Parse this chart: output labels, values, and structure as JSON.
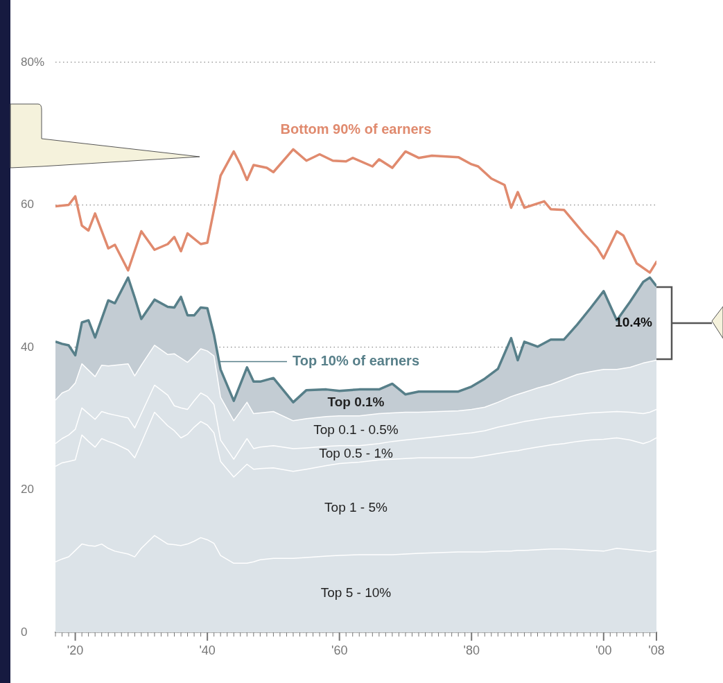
{
  "chart_data": {
    "type": "area",
    "stacked": true,
    "grid": "y",
    "legend": false,
    "x": [
      1917,
      1918,
      1919,
      1920,
      1921,
      1922,
      1923,
      1924,
      1925,
      1926,
      1928,
      1929,
      1930,
      1932,
      1934,
      1935,
      1936,
      1937,
      1938,
      1939,
      1940,
      1941,
      1942,
      1944,
      1946,
      1947,
      1948,
      1950,
      1953,
      1955,
      1958,
      1960,
      1963,
      1966,
      1968,
      1970,
      1972,
      1975,
      1978,
      1980,
      1982,
      1984,
      1986,
      1987,
      1988,
      1990,
      1992,
      1994,
      1996,
      1998,
      2000,
      2002,
      2004,
      2006,
      2007,
      2008
    ],
    "series": [
      {
        "name": "Top 5 - 10%",
        "color": "#dce3e8",
        "values": [
          9.9,
          10.3,
          10.6,
          11.5,
          12.4,
          12.2,
          12.1,
          12.4,
          11.8,
          11.4,
          11.0,
          10.6,
          11.8,
          13.6,
          12.4,
          12.3,
          12.2,
          12.4,
          12.8,
          13.3,
          13.0,
          12.5,
          10.8,
          9.7,
          9.7,
          9.9,
          10.2,
          10.4,
          10.4,
          10.5,
          10.7,
          10.8,
          10.9,
          10.9,
          10.9,
          11.0,
          11.1,
          11.2,
          11.3,
          11.3,
          11.3,
          11.4,
          11.4,
          11.5,
          11.5,
          11.6,
          11.7,
          11.7,
          11.6,
          11.5,
          11.4,
          11.8,
          11.6,
          11.4,
          11.3,
          11.5
        ]
      },
      {
        "name": "Top 1 - 5%",
        "color": "#dce3e8",
        "values": [
          13.4,
          13.5,
          13.4,
          12.7,
          15.3,
          14.6,
          13.9,
          14.8,
          15.0,
          15.1,
          14.6,
          13.9,
          14.8,
          17.3,
          16.6,
          16.0,
          15.1,
          15.4,
          16.0,
          16.3,
          16.1,
          15.5,
          13.2,
          12.1,
          13.9,
          13.0,
          12.8,
          12.7,
          12.2,
          12.4,
          12.7,
          12.9,
          13.0,
          13.3,
          13.4,
          13.4,
          13.4,
          13.3,
          13.2,
          13.2,
          13.5,
          13.7,
          14.0,
          14.0,
          14.2,
          14.4,
          14.6,
          14.8,
          15.2,
          15.5,
          15.7,
          15.5,
          15.4,
          15.1,
          15.5,
          15.8
        ]
      },
      {
        "name": "Top 0.5 - 1%",
        "color": "#dce3e8",
        "values": [
          3.2,
          3.4,
          3.7,
          4.3,
          3.8,
          3.9,
          3.9,
          3.8,
          3.9,
          4.0,
          4.5,
          4.2,
          4.1,
          3.8,
          4.3,
          3.5,
          4.2,
          3.5,
          3.7,
          4.0,
          4.0,
          4.0,
          3.0,
          2.5,
          3.6,
          2.9,
          3.0,
          3.1,
          3.2,
          3.0,
          2.7,
          2.5,
          2.3,
          2.3,
          2.5,
          2.6,
          2.7,
          3.0,
          3.3,
          3.5,
          3.5,
          3.7,
          3.8,
          3.9,
          3.9,
          3.9,
          3.9,
          3.9,
          3.8,
          3.8,
          3.8,
          3.7,
          3.9,
          4.2,
          4.1,
          4.0
        ]
      },
      {
        "name": "Top 0.1 - 0.5%",
        "color": "#dce3e8",
        "values": [
          6.1,
          6.4,
          6.3,
          6.5,
          6.2,
          6.1,
          6.0,
          6.5,
          6.7,
          7.0,
          7.6,
          7.3,
          6.8,
          5.6,
          5.7,
          7.3,
          7.0,
          6.6,
          6.3,
          6.2,
          6.4,
          6.8,
          6.0,
          5.4,
          5.1,
          4.9,
          4.8,
          4.8,
          3.9,
          4.1,
          4.2,
          4.2,
          4.2,
          4.2,
          4.0,
          3.9,
          3.7,
          3.5,
          3.3,
          3.3,
          3.3,
          3.5,
          3.9,
          4.0,
          4.1,
          4.4,
          4.6,
          5.1,
          5.6,
          5.8,
          6.0,
          5.9,
          6.3,
          7.1,
          7.1,
          6.9
        ]
      },
      {
        "name": "Top 0.1%",
        "color": "#c3ccd3",
        "values": [
          8.2,
          6.9,
          6.3,
          3.9,
          5.8,
          7.0,
          5.5,
          6.5,
          9.2,
          8.7,
          12.1,
          11.0,
          6.5,
          6.4,
          6.7,
          6.5,
          8.6,
          6.6,
          5.7,
          5.8,
          6.0,
          3.0,
          3.9,
          2.8,
          4.9,
          4.5,
          4.4,
          4.7,
          2.6,
          4.0,
          3.8,
          3.5,
          3.7,
          3.4,
          4.1,
          2.5,
          2.9,
          2.8,
          2.7,
          3.2,
          4.0,
          4.7,
          8.2,
          4.8,
          7.1,
          5.8,
          6.3,
          5.6,
          7.0,
          8.9,
          11.0,
          6.9,
          9.2,
          11.4,
          11.8,
          10.4
        ]
      },
      {
        "name": "Bottom 90% of earners",
        "type": "line",
        "color": "#e08a6e",
        "x": [
          1917,
          1919,
          1920,
          1921,
          1922,
          1923,
          1925,
          1926,
          1928,
          1930,
          1932,
          1934,
          1935,
          1936,
          1937,
          1939,
          1940,
          1941,
          1942,
          1944,
          1945,
          1946,
          1947,
          1949,
          1950,
          1953,
          1955,
          1957,
          1959,
          1961,
          1962,
          1965,
          1966,
          1968,
          1970,
          1972,
          1974,
          1978,
          1980,
          1981,
          1983,
          1985,
          1986,
          1987,
          1988,
          1991,
          1992,
          1994,
          1997,
          1999,
          2000,
          2002,
          2003,
          2005,
          2007,
          2008
        ],
        "values": [
          59.8,
          60.0,
          61.2,
          57.1,
          56.4,
          58.8,
          53.9,
          54.4,
          50.8,
          56.3,
          53.7,
          54.5,
          55.5,
          53.5,
          56.0,
          54.5,
          54.7,
          59.3,
          64.1,
          67.5,
          65.7,
          63.5,
          65.6,
          65.2,
          64.6,
          67.8,
          66.2,
          67.1,
          66.2,
          66.1,
          66.6,
          65.4,
          66.4,
          65.2,
          67.5,
          66.6,
          66.9,
          66.7,
          65.7,
          65.4,
          63.7,
          62.8,
          59.6,
          61.8,
          59.6,
          60.5,
          59.4,
          59.3,
          56.0,
          54.0,
          52.5,
          56.3,
          55.7,
          51.8,
          50.5,
          52.0
        ]
      }
    ],
    "xlim": [
      1917,
      2008
    ],
    "xticks": [
      {
        "value": 1917,
        "label": null
      },
      {
        "value": 1918,
        "label": null
      },
      {
        "value": 1919,
        "label": null
      },
      {
        "value": 1920,
        "label": "'20"
      },
      {
        "value": 1921,
        "label": null
      },
      {
        "value": 1922,
        "label": null
      },
      {
        "value": 1923,
        "label": null
      },
      {
        "value": 1924,
        "label": null
      },
      {
        "value": 1925,
        "label": null
      },
      {
        "value": 1926,
        "label": null
      },
      {
        "value": 1927,
        "label": null
      },
      {
        "value": 1928,
        "label": null
      },
      {
        "value": 1929,
        "label": null
      },
      {
        "value": 1930,
        "label": null
      },
      {
        "value": 1931,
        "label": null
      },
      {
        "value": 1932,
        "label": null
      },
      {
        "value": 1933,
        "label": null
      },
      {
        "value": 1934,
        "label": null
      },
      {
        "value": 1935,
        "label": null
      },
      {
        "value": 1936,
        "label": null
      },
      {
        "value": 1937,
        "label": null
      },
      {
        "value": 1938,
        "label": null
      },
      {
        "value": 1939,
        "label": null
      },
      {
        "value": 1940,
        "label": "'40"
      },
      {
        "value": 1941,
        "label": null
      },
      {
        "value": 1942,
        "label": null
      },
      {
        "value": 1943,
        "label": null
      },
      {
        "value": 1944,
        "label": null
      },
      {
        "value": 1945,
        "label": null
      },
      {
        "value": 1946,
        "label": null
      },
      {
        "value": 1947,
        "label": null
      },
      {
        "value": 1948,
        "label": null
      },
      {
        "value": 1949,
        "label": null
      },
      {
        "value": 1950,
        "label": null
      },
      {
        "value": 1951,
        "label": null
      },
      {
        "value": 1952,
        "label": null
      },
      {
        "value": 1953,
        "label": null
      },
      {
        "value": 1954,
        "label": null
      },
      {
        "value": 1955,
        "label": null
      },
      {
        "value": 1956,
        "label": null
      },
      {
        "value": 1957,
        "label": null
      },
      {
        "value": 1958,
        "label": null
      },
      {
        "value": 1959,
        "label": null
      },
      {
        "value": 1960,
        "label": "'60"
      },
      {
        "value": 1961,
        "label": null
      },
      {
        "value": 1962,
        "label": null
      },
      {
        "value": 1963,
        "label": null
      },
      {
        "value": 1964,
        "label": null
      },
      {
        "value": 1965,
        "label": null
      },
      {
        "value": 1966,
        "label": null
      },
      {
        "value": 1967,
        "label": null
      },
      {
        "value": 1968,
        "label": null
      },
      {
        "value": 1969,
        "label": null
      },
      {
        "value": 1970,
        "label": null
      },
      {
        "value": 1971,
        "label": null
      },
      {
        "value": 1972,
        "label": null
      },
      {
        "value": 1973,
        "label": null
      },
      {
        "value": 1974,
        "label": null
      },
      {
        "value": 1975,
        "label": null
      },
      {
        "value": 1976,
        "label": null
      },
      {
        "value": 1977,
        "label": null
      },
      {
        "value": 1978,
        "label": null
      },
      {
        "value": 1979,
        "label": null
      },
      {
        "value": 1980,
        "label": "'80"
      },
      {
        "value": 1981,
        "label": null
      },
      {
        "value": 1982,
        "label": null
      },
      {
        "value": 1983,
        "label": null
      },
      {
        "value": 1984,
        "label": null
      },
      {
        "value": 1985,
        "label": null
      },
      {
        "value": 1986,
        "label": null
      },
      {
        "value": 1987,
        "label": null
      },
      {
        "value": 1988,
        "label": null
      },
      {
        "value": 1989,
        "label": null
      },
      {
        "value": 1990,
        "label": null
      },
      {
        "value": 1991,
        "label": null
      },
      {
        "value": 1992,
        "label": null
      },
      {
        "value": 1993,
        "label": null
      },
      {
        "value": 1994,
        "label": null
      },
      {
        "value": 1995,
        "label": null
      },
      {
        "value": 1996,
        "label": null
      },
      {
        "value": 1997,
        "label": null
      },
      {
        "value": 1998,
        "label": null
      },
      {
        "value": 1999,
        "label": null
      },
      {
        "value": 2000,
        "label": "'00"
      },
      {
        "value": 2001,
        "label": null
      },
      {
        "value": 2002,
        "label": null
      },
      {
        "value": 2003,
        "label": null
      },
      {
        "value": 2004,
        "label": null
      },
      {
        "value": 2005,
        "label": null
      },
      {
        "value": 2006,
        "label": null
      },
      {
        "value": 2007,
        "label": null
      },
      {
        "value": 2008,
        "label": "'08"
      }
    ],
    "ylim": [
      0,
      80
    ],
    "yticks": [
      0,
      20,
      40,
      60,
      {
        "value": 80,
        "label": "80%"
      }
    ],
    "annotations": [
      "Top 10% of earners",
      {
        "text": "10.4%",
        "x": 2008,
        "y": 43.4
      }
    ]
  }
}
